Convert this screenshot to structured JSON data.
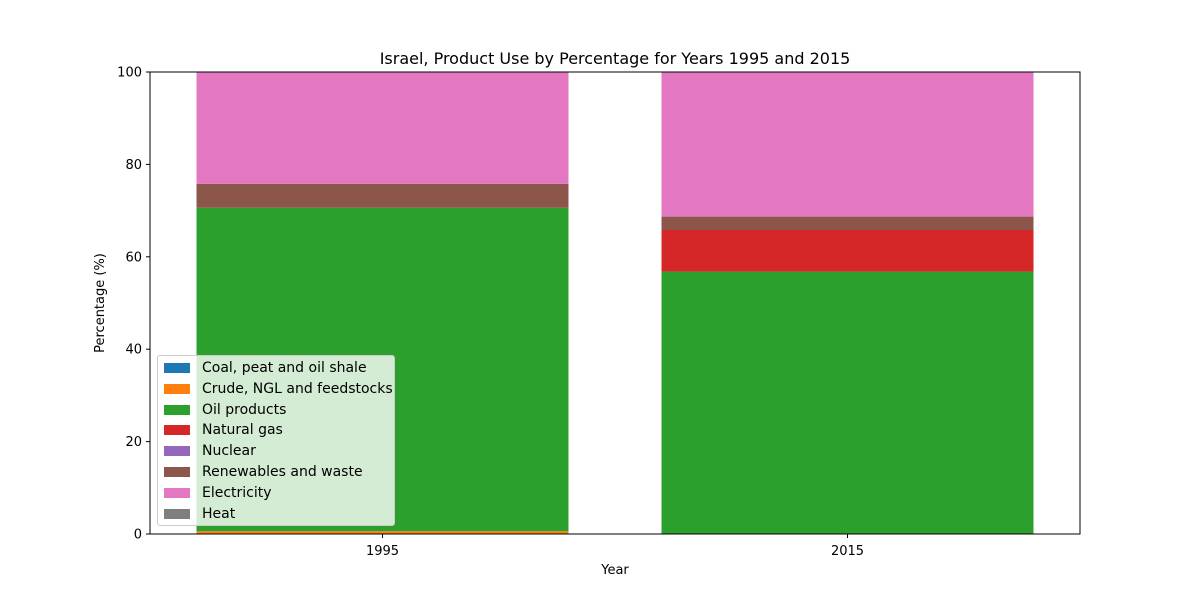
{
  "chart_data": {
    "type": "bar",
    "stacked": true,
    "title": "Israel, Product Use by Percentage for Years 1995 and 2015",
    "xlabel": "Year",
    "ylabel": "Percentage (%)",
    "categories": [
      "1995",
      "2015"
    ],
    "ylim": [
      0,
      100
    ],
    "yticks": [
      "0",
      "20",
      "40",
      "60",
      "80",
      "100"
    ],
    "grid": false,
    "legend_position": "lower-left",
    "series": [
      {
        "name": "Coal, peat and oil shale",
        "color": "#1f77b4",
        "values": [
          0.0,
          0.0
        ]
      },
      {
        "name": "Crude, NGL and feedstocks",
        "color": "#ff7f0e",
        "values": [
          0.6,
          0.0
        ]
      },
      {
        "name": "Oil products",
        "color": "#2ca02c",
        "values": [
          70.0,
          56.8
        ]
      },
      {
        "name": "Natural gas",
        "color": "#d62728",
        "values": [
          0.0,
          9.0
        ]
      },
      {
        "name": "Nuclear",
        "color": "#9467bd",
        "values": [
          0.0,
          0.0
        ]
      },
      {
        "name": "Renewables and waste",
        "color": "#8c564b",
        "values": [
          5.2,
          2.9
        ]
      },
      {
        "name": "Electricity",
        "color": "#e377c2",
        "values": [
          24.2,
          31.3
        ]
      },
      {
        "name": "Heat",
        "color": "#7f7f7f",
        "values": [
          0.0,
          0.0
        ]
      }
    ]
  }
}
